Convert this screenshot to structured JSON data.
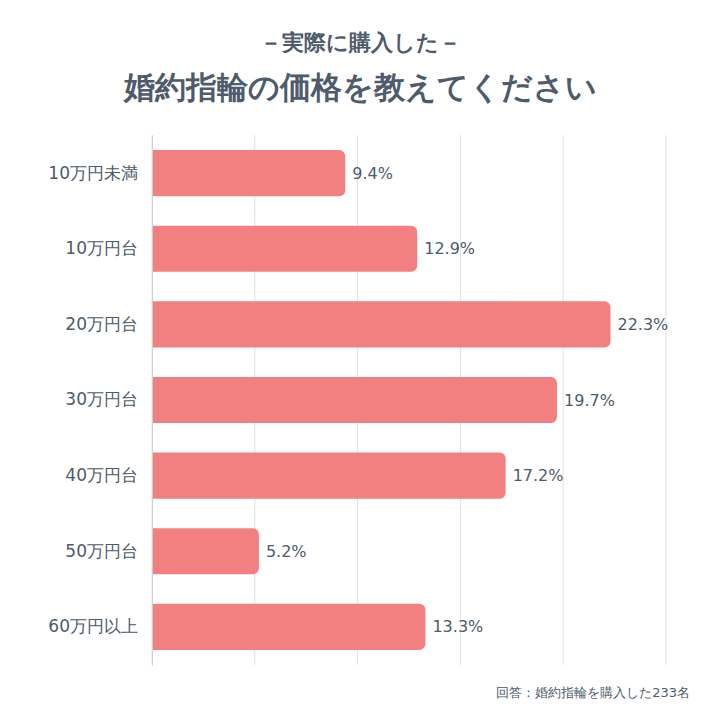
{
  "chart_data": {
    "type": "bar",
    "subtitle": "－実際に購入した－",
    "title": "婚約指輪の価格を教えてください",
    "categories": [
      "10万円未満",
      "10万円台",
      "20万円台",
      "30万円台",
      "40万円台",
      "50万円台",
      "60万円以上"
    ],
    "values": [
      9.4,
      12.9,
      22.3,
      19.7,
      17.2,
      5.2,
      13.3
    ],
    "value_labels": [
      "9.4%",
      "12.9%",
      "22.3%",
      "19.7%",
      "17.2%",
      "5.2%",
      "13.3%"
    ],
    "color": "#f28080",
    "orientation": "horizontal",
    "data_labels": true,
    "grid": true,
    "tick_labels": "y",
    "xlim": [
      0,
      25
    ],
    "xticks": [
      0,
      5,
      10,
      15,
      20,
      25
    ],
    "note": "回答：婚約指輪を購入した233名"
  }
}
